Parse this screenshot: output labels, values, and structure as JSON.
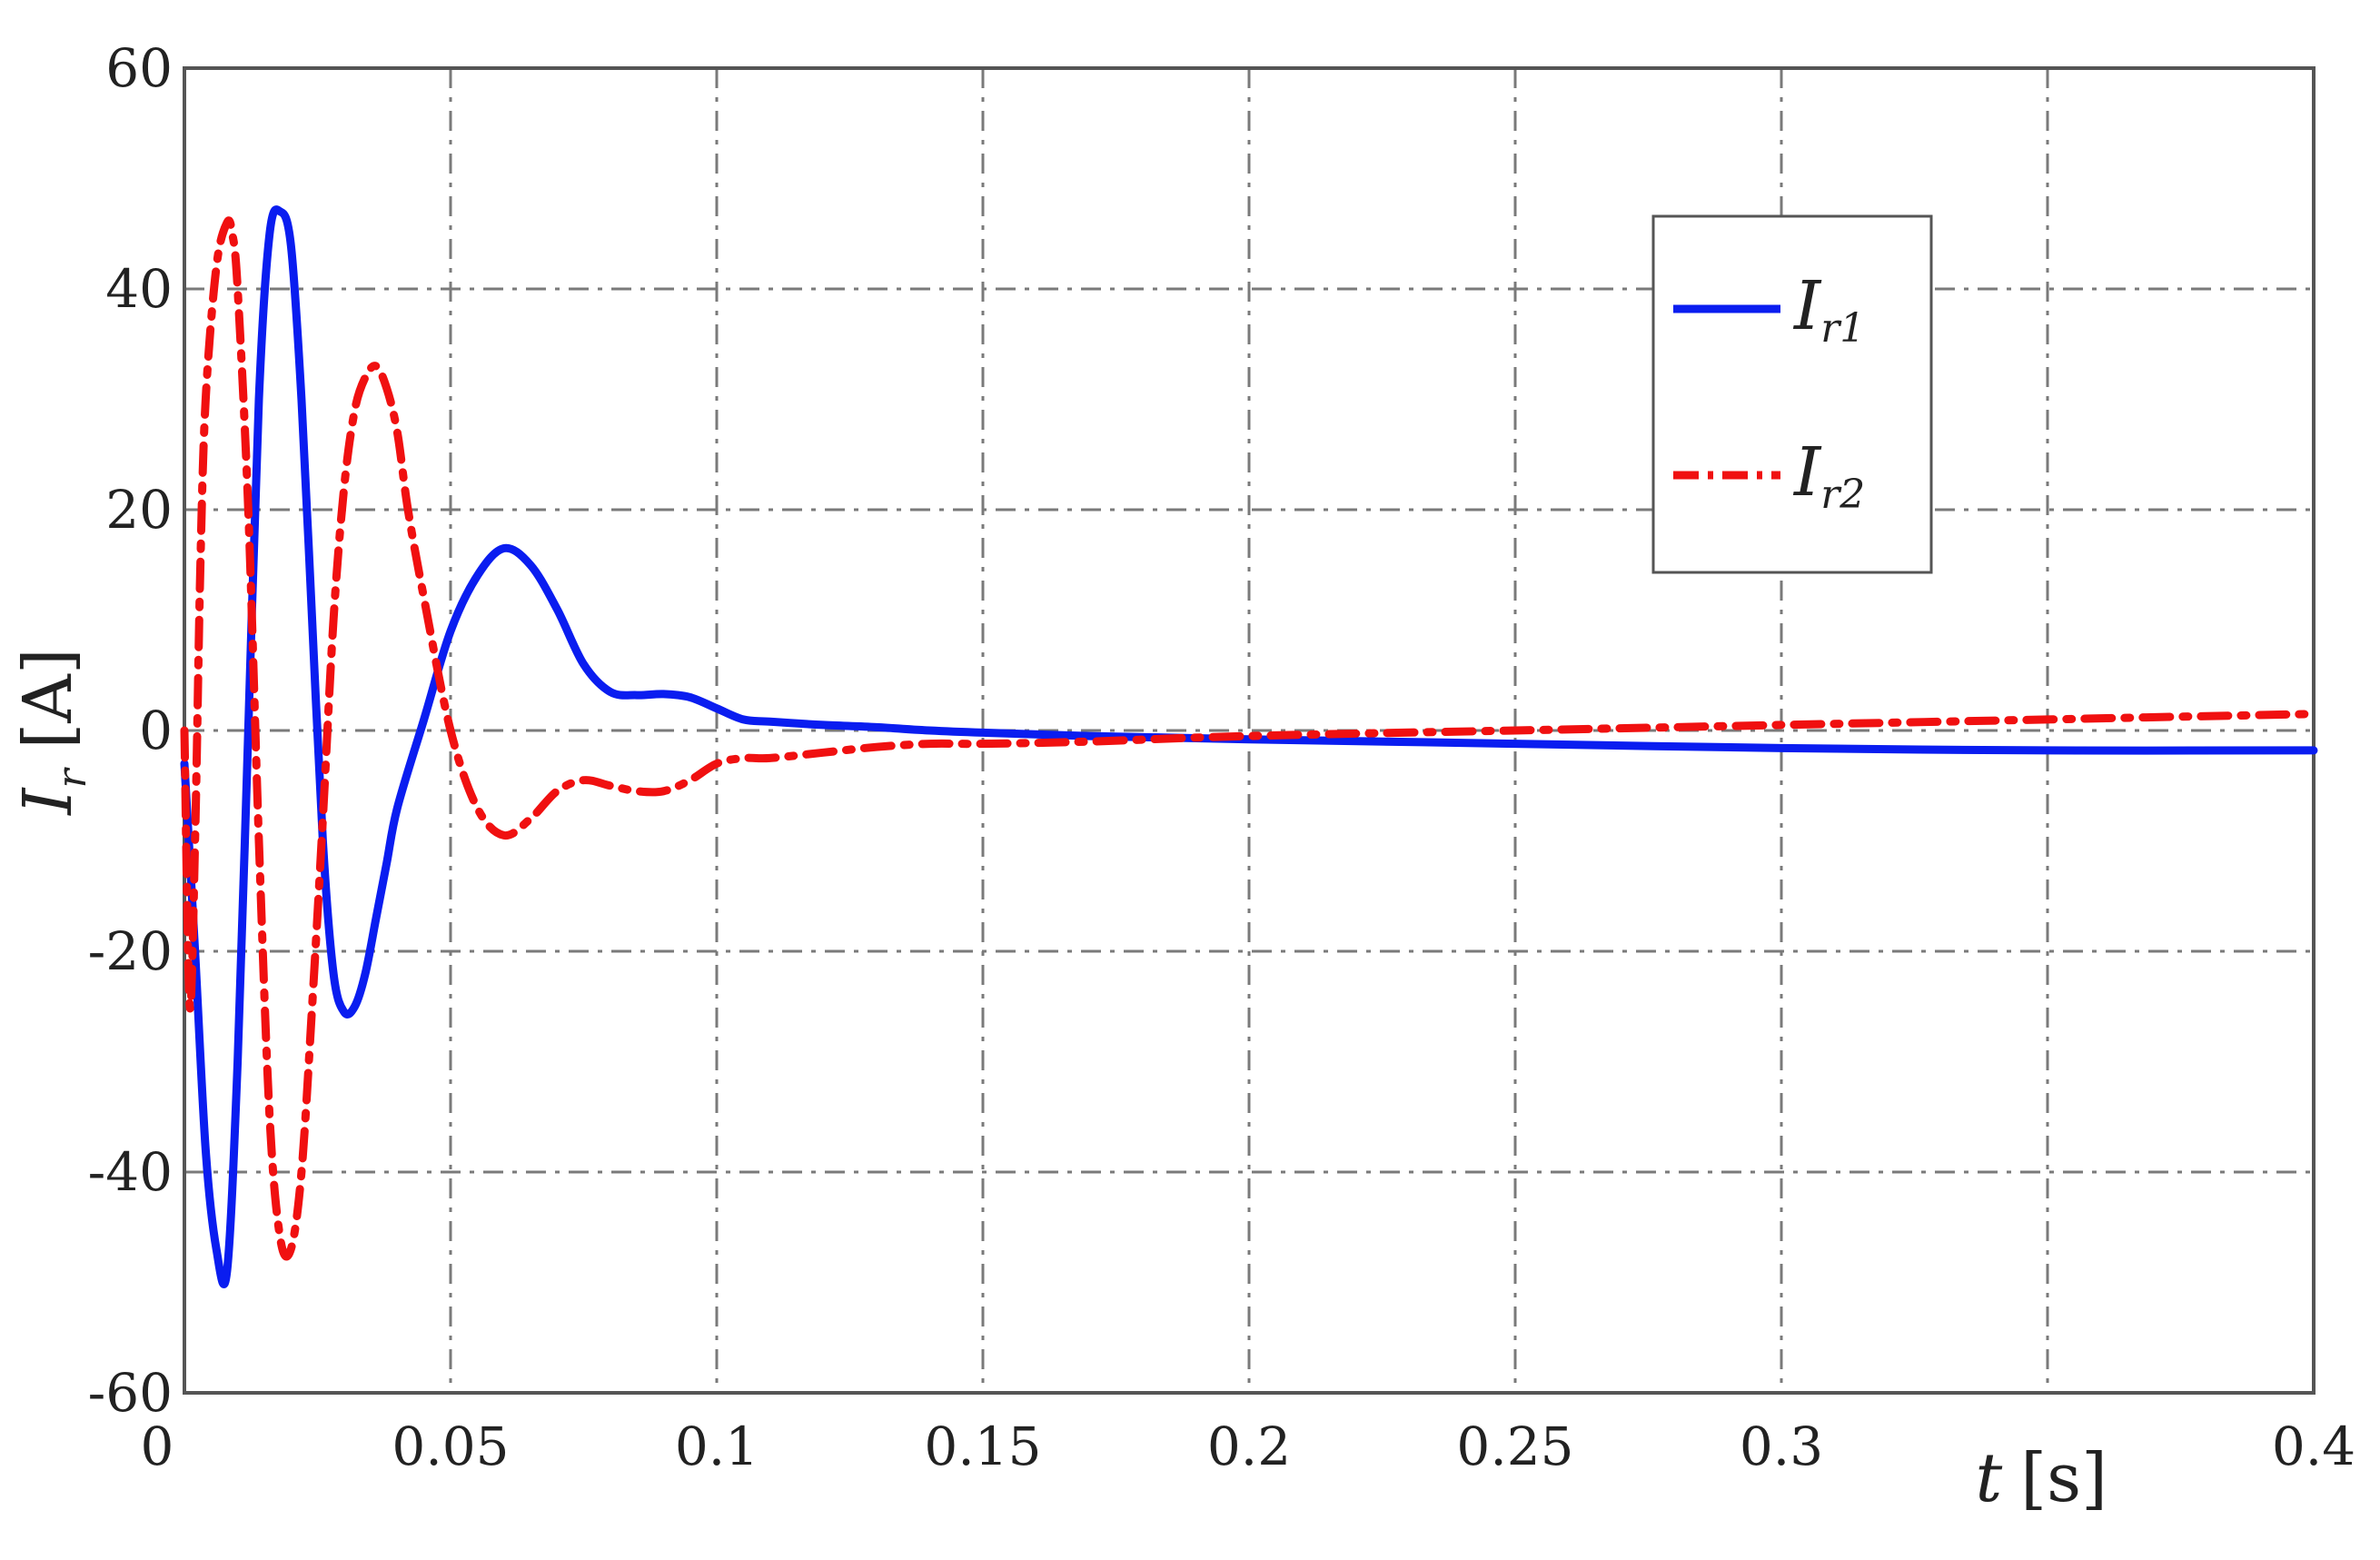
{
  "chart_data": {
    "type": "line",
    "xlabel": {
      "var": "t",
      "unit": "[s]"
    },
    "ylabel": {
      "var": "I",
      "sub": "r",
      "unit": "[A]"
    },
    "xlim": [
      0,
      0.4
    ],
    "ylim": [
      -60,
      60
    ],
    "xticks": [
      0,
      0.05,
      0.1,
      0.15,
      0.2,
      0.25,
      0.3,
      0.35,
      0.4
    ],
    "xtick_labels": [
      "0",
      "0.05",
      "0.1",
      "0.15",
      "0.2",
      "0.25",
      "0.3",
      "",
      "0.4"
    ],
    "yticks": [
      -60,
      -40,
      -20,
      0,
      20,
      40,
      60
    ],
    "ytick_labels": [
      "-60",
      "-40",
      "-20",
      "0",
      "20",
      "40",
      "60"
    ],
    "grid": true,
    "grid_style": "dash-dot",
    "legend_position": "top-right",
    "series": [
      {
        "name": "I_r1",
        "legend_main": "I",
        "legend_sub": "r1",
        "color": "#0a1df0",
        "style": "solid",
        "x": [
          0,
          0.002,
          0.004,
          0.006,
          0.008,
          0.01,
          0.012,
          0.014,
          0.016,
          0.018,
          0.02,
          0.022,
          0.024,
          0.026,
          0.028,
          0.03,
          0.032,
          0.034,
          0.036,
          0.038,
          0.04,
          0.045,
          0.05,
          0.055,
          0.06,
          0.065,
          0.07,
          0.075,
          0.08,
          0.085,
          0.09,
          0.095,
          0.1,
          0.105,
          0.11,
          0.12,
          0.13,
          0.14,
          0.15,
          0.17,
          0.2,
          0.25,
          0.3,
          0.35,
          0.4
        ],
        "y": [
          -3,
          -20,
          -38,
          -47,
          -49,
          -30,
          0,
          30,
          45,
          47,
          44,
          30,
          10,
          -10,
          -22,
          -25.5,
          -25,
          -22,
          -17,
          -12,
          -7,
          1,
          9,
          14,
          16.5,
          15,
          11,
          6,
          3.5,
          3.2,
          3.3,
          3,
          2,
          1,
          0.8,
          0.5,
          0.3,
          0,
          -0.2,
          -0.5,
          -0.8,
          -1.2,
          -1.6,
          -1.8,
          -1.8
        ]
      },
      {
        "name": "I_r2",
        "legend_main": "I",
        "legend_sub": "r2",
        "color": "#f01010",
        "style": "dash-dot",
        "x": [
          0,
          0.001,
          0.002,
          0.003,
          0.004,
          0.006,
          0.008,
          0.009,
          0.01,
          0.012,
          0.014,
          0.016,
          0.018,
          0.02,
          0.022,
          0.024,
          0.026,
          0.028,
          0.03,
          0.032,
          0.034,
          0.036,
          0.038,
          0.04,
          0.042,
          0.045,
          0.05,
          0.055,
          0.06,
          0.065,
          0.07,
          0.075,
          0.08,
          0.085,
          0.09,
          0.095,
          0.1,
          0.105,
          0.11,
          0.12,
          0.13,
          0.14,
          0.15,
          0.17,
          0.2,
          0.25,
          0.3,
          0.35,
          0.4
        ],
        "y": [
          0,
          -25,
          -10,
          15,
          30,
          42,
          46,
          45,
          40,
          20,
          -10,
          -35,
          -46,
          -47,
          -40,
          -25,
          -8,
          10,
          22,
          29,
          32,
          33,
          31,
          27,
          20,
          12,
          0,
          -7,
          -9.5,
          -8,
          -5.5,
          -4.5,
          -5,
          -5.5,
          -5.5,
          -4.5,
          -3,
          -2.5,
          -2.5,
          -2,
          -1.5,
          -1.2,
          -1.2,
          -1,
          -0.5,
          0,
          0.5,
          1,
          1.5
        ]
      }
    ]
  }
}
